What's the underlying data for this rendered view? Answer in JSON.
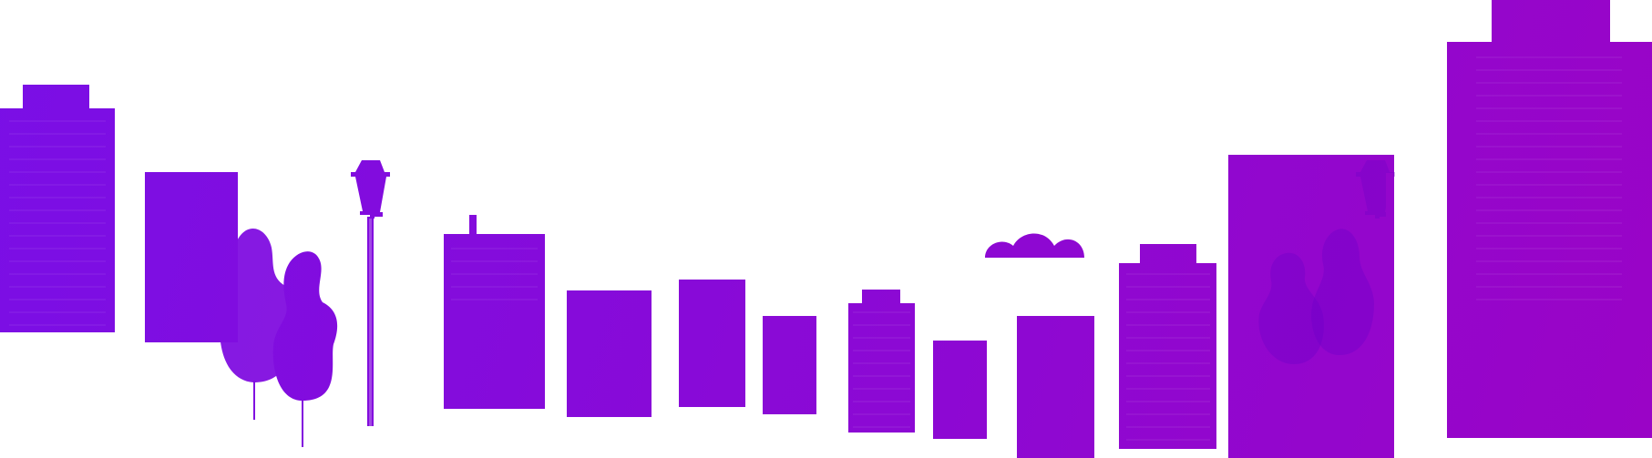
{
  "scene": {
    "gradient_start": "#7a0fe6",
    "gradient_end": "#9a04c6",
    "background": "#ffffff",
    "stripe_color": "#ffffff",
    "elements": [
      "building",
      "building",
      "tree",
      "tree",
      "street-lamp",
      "building",
      "building",
      "building",
      "building",
      "building",
      "building",
      "cloud",
      "building",
      "building",
      "street-lamp",
      "tree",
      "tree",
      "building",
      "building"
    ]
  }
}
